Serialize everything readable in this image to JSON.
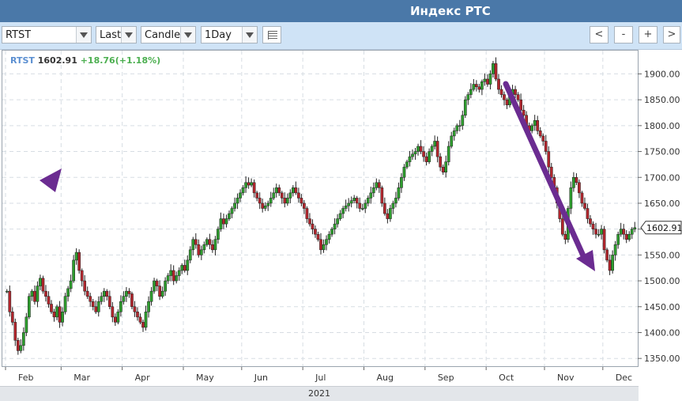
{
  "window": {
    "title": "Индекс РТС"
  },
  "toolbar": {
    "symbol": "RTST",
    "price_type": "Last",
    "chart_style": "Candle",
    "period": "1Day",
    "nav": {
      "back": "<",
      "zoom_out": "-",
      "zoom_in": "+",
      "forward": ">"
    }
  },
  "legend": {
    "symbol": "RTST",
    "last": "1602.91",
    "change": "+18.76(+1.18%)"
  },
  "chart_data": {
    "type": "candlestick",
    "title": "Индекс РТС",
    "year_label": "2021",
    "x_tick_labels": [
      "Feb",
      "Mar",
      "Apr",
      "May",
      "Jun",
      "Jul",
      "Aug",
      "Sep",
      "Oct",
      "Nov",
      "Dec"
    ],
    "y_ticks": [
      1350,
      1400,
      1450,
      1500,
      1550,
      1600,
      1650,
      1700,
      1750,
      1800,
      1850,
      1900
    ],
    "y_tick_labels": [
      "1350.00",
      "1400.00",
      "1450.00",
      "1500.00",
      "1550.00",
      "1600.00",
      "1650.00",
      "1700.00",
      "1750.00",
      "1800.00",
      "1850.00",
      "1900.00"
    ],
    "ylim": [
      1335,
      1945
    ],
    "last_price": 1602.91,
    "last_price_label": "1602.91",
    "grid": true,
    "colors": {
      "up": "#2e9e2e",
      "down": "#b3262d",
      "arrow": "#6b2c91",
      "legend_symbol": "#5b8fd1",
      "legend_change": "#4caf50",
      "title_bar": "#4a78a8"
    },
    "months": [
      {
        "label": "Feb",
        "closes": [
          1480,
          1440,
          1420,
          1385,
          1365,
          1375,
          1400,
          1430,
          1470,
          1480,
          1460,
          1490,
          1505,
          1480,
          1470,
          1455,
          1440,
          1430,
          1450,
          1420
        ]
      },
      {
        "label": "Mar",
        "closes": [
          1440,
          1470,
          1485,
          1500,
          1540,
          1555,
          1520,
          1500,
          1480,
          1470,
          1460,
          1450,
          1440,
          1460,
          1470,
          1480,
          1470,
          1450,
          1430,
          1420,
          1440,
          1460
        ]
      },
      {
        "label": "Apr",
        "closes": [
          1470,
          1480,
          1475,
          1450,
          1440,
          1430,
          1420,
          1410,
          1440,
          1460,
          1480,
          1500,
          1490,
          1470,
          1480,
          1500,
          1510,
          1520,
          1500,
          1510,
          1520,
          1530
        ]
      },
      {
        "label": "May",
        "closes": [
          1520,
          1540,
          1560,
          1580,
          1570,
          1550,
          1560,
          1570,
          1580,
          1570,
          1560,
          1580,
          1600,
          1620,
          1610,
          1620,
          1630,
          1640,
          1650,
          1660,
          1670
        ]
      },
      {
        "label": "Jun",
        "closes": [
          1680,
          1690,
          1685,
          1690,
          1670,
          1660,
          1650,
          1640,
          1645,
          1650,
          1660,
          1670,
          1680,
          1670,
          1660,
          1650,
          1660,
          1670,
          1680,
          1670,
          1660,
          1650
        ]
      },
      {
        "label": "Jul",
        "closes": [
          1640,
          1620,
          1610,
          1600,
          1590,
          1580,
          1560,
          1570,
          1580,
          1590,
          1600,
          1610,
          1620,
          1630,
          1640,
          1645,
          1650,
          1655,
          1660,
          1650,
          1640,
          1640
        ]
      },
      {
        "label": "Aug",
        "closes": [
          1650,
          1660,
          1670,
          1680,
          1690,
          1680,
          1650,
          1630,
          1620,
          1640,
          1650,
          1660,
          1680,
          1700,
          1720,
          1730,
          1740,
          1745,
          1750,
          1760,
          1750,
          1740
        ]
      },
      {
        "label": "Sep",
        "closes": [
          1730,
          1750,
          1760,
          1770,
          1740,
          1720,
          1710,
          1730,
          1760,
          1780,
          1790,
          1800,
          1800,
          1820,
          1850,
          1860,
          1870,
          1880,
          1875,
          1870,
          1885,
          1890
        ]
      },
      {
        "label": "Oct",
        "closes": [
          1880,
          1900,
          1920,
          1890,
          1870,
          1860,
          1850,
          1840,
          1860,
          1870,
          1860,
          1850,
          1830,
          1820,
          1800,
          1790,
          1800,
          1810,
          1790,
          1780,
          1770
        ]
      },
      {
        "label": "Nov",
        "closes": [
          1750,
          1720,
          1700,
          1680,
          1650,
          1620,
          1590,
          1580,
          1640,
          1680,
          1700,
          1690,
          1670,
          1650,
          1640,
          1620,
          1610,
          1600,
          1590,
          1590,
          1600
        ]
      },
      {
        "label": "Dec",
        "closes": [
          1560,
          1540,
          1520,
          1550,
          1570,
          1590,
          1600,
          1590,
          1580,
          1590,
          1600,
          1602.91
        ]
      }
    ]
  }
}
